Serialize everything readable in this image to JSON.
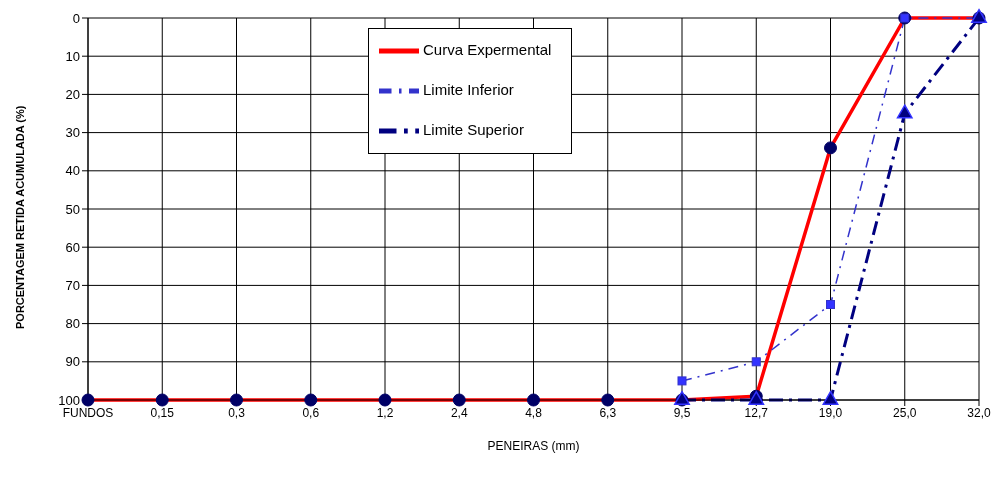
{
  "chart_data": {
    "type": "line",
    "xlabel": "PENEIRAS (mm)",
    "ylabel": "PORCENTAGEM RETIDA ACUMULADA (%)",
    "categories": [
      "FUNDOS",
      "0,15",
      "0,3",
      "0,6",
      "1,2",
      "2,4",
      "4,8",
      "6,3",
      "9,5",
      "12,7",
      "19,0",
      "25,0",
      "32,0"
    ],
    "series": [
      {
        "name": "Curva Expermental",
        "color": "#ff0000",
        "marker": "circle",
        "line_style": "solid",
        "values": [
          100,
          100,
          100,
          100,
          100,
          100,
          100,
          100,
          100,
          99,
          34,
          0,
          0
        ]
      },
      {
        "name": "Limite Inferior",
        "color": "#3333cc",
        "marker": "square",
        "line_style": "dashed",
        "values": [
          null,
          null,
          null,
          null,
          null,
          null,
          null,
          null,
          95,
          90,
          75,
          0,
          0
        ]
      },
      {
        "name": "Limite Superior",
        "color": "#000080",
        "marker": "triangle",
        "line_style": "dashed",
        "values": [
          null,
          null,
          null,
          null,
          null,
          null,
          null,
          null,
          100,
          100,
          100,
          25,
          0
        ]
      }
    ],
    "ylim": [
      100,
      0
    ],
    "yticks": [
      0,
      10,
      20,
      30,
      40,
      50,
      60,
      70,
      80,
      90,
      100
    ],
    "grid": true,
    "legend": "top"
  }
}
